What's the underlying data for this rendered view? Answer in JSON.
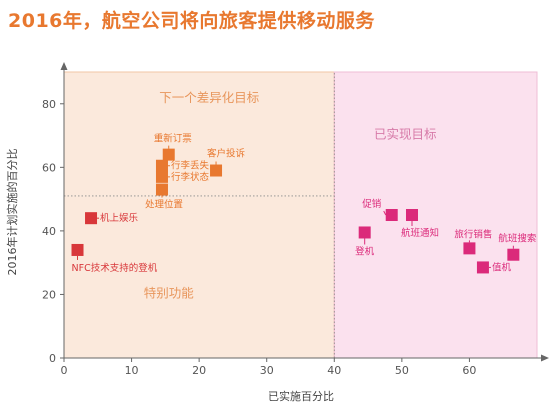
{
  "title": "2016年，航空公司将向旅客提供移动服务",
  "chart_data": {
    "type": "scatter",
    "xlabel": "已实施百分比",
    "ylabel": "2016年计划实施的百分比",
    "xlim": [
      0,
      70
    ],
    "ylim": [
      0,
      90
    ],
    "xticks": [
      0,
      10,
      20,
      30,
      40,
      50,
      60
    ],
    "yticks": [
      0,
      20,
      40,
      60,
      80
    ],
    "grid": false,
    "regions": [
      {
        "label": "下一个差异化目标",
        "x": [
          0,
          40
        ],
        "y": [
          51,
          90
        ],
        "color": "#fbe9dc"
      },
      {
        "label": "特别功能",
        "x": [
          0,
          40
        ],
        "y": [
          0,
          51
        ],
        "color": "#fbe9dc"
      },
      {
        "label": "已实现目标",
        "x": [
          40,
          70
        ],
        "y": [
          0,
          90
        ],
        "color": "#fbe1ee"
      }
    ],
    "points": [
      {
        "label": "重新订票",
        "x": 15.5,
        "y": 64,
        "color": "#e8782f"
      },
      {
        "label": "行李丢失",
        "x": 14.5,
        "y": 60.5,
        "color": "#e8782f"
      },
      {
        "label": "行李状态",
        "x": 14.5,
        "y": 57,
        "color": "#e8782f"
      },
      {
        "label": "处理位置",
        "x": 14.5,
        "y": 53,
        "color": "#e8782f"
      },
      {
        "label": "客户投诉",
        "x": 22.5,
        "y": 59,
        "color": "#e8782f"
      },
      {
        "label": "机上娱乐",
        "x": 4,
        "y": 44,
        "color": "#d8373a"
      },
      {
        "label": "NFC技术支持的登机",
        "x": 2,
        "y": 34,
        "color": "#d8373a"
      },
      {
        "label": "促销",
        "x": 48.5,
        "y": 45,
        "color": "#db2a7a"
      },
      {
        "label": "航班通知",
        "x": 51.5,
        "y": 45,
        "color": "#db2a7a"
      },
      {
        "label": "登机",
        "x": 44.5,
        "y": 39.5,
        "color": "#db2a7a"
      },
      {
        "label": "旅行销售",
        "x": 60,
        "y": 34.5,
        "color": "#db2a7a"
      },
      {
        "label": "值机",
        "x": 62,
        "y": 28.5,
        "color": "#db2a7a"
      },
      {
        "label": "航班搜索",
        "x": 66.5,
        "y": 32.5,
        "color": "#db2a7a"
      }
    ]
  }
}
